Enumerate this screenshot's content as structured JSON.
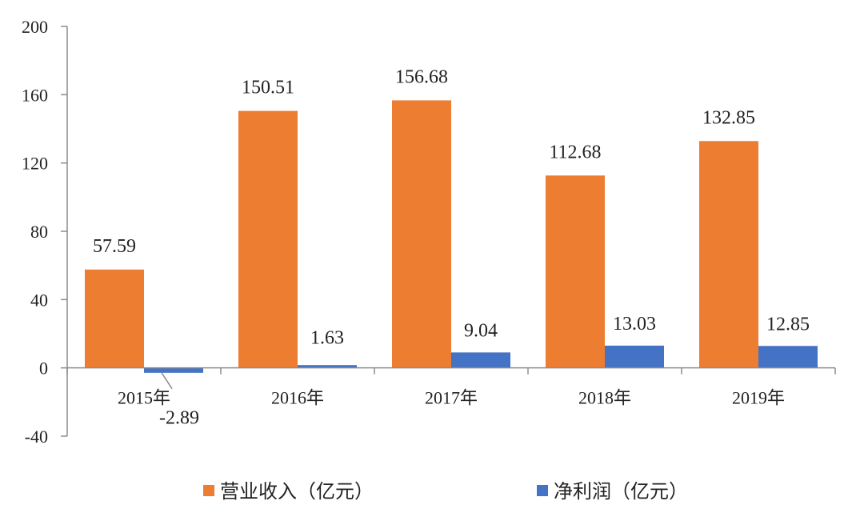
{
  "chart_data": {
    "type": "bar",
    "categories": [
      "2015年",
      "2016年",
      "2017年",
      "2018年",
      "2019年"
    ],
    "series": [
      {
        "name": "营业收入（亿元）",
        "values": [
          57.59,
          150.51,
          156.68,
          112.68,
          132.85
        ],
        "labels": [
          "57.59",
          "150.51",
          "156.68",
          "112.68",
          "132.85"
        ],
        "color": "#ED7D31"
      },
      {
        "name": "净利润（亿元）",
        "values": [
          -2.89,
          1.63,
          9.04,
          13.03,
          12.85
        ],
        "labels": [
          "-2.89",
          "1.63",
          "9.04",
          "13.03",
          "12.85"
        ],
        "color": "#4472C4"
      }
    ],
    "ylim": [
      -40,
      200
    ],
    "yticks": [
      -40,
      0,
      40,
      80,
      120,
      160,
      200
    ],
    "ytick_labels": [
      "-40",
      "0",
      "40",
      "80",
      "120",
      "160",
      "200"
    ],
    "grid": false,
    "legend": "bottom",
    "title": "",
    "xlabel": "",
    "ylabel": ""
  }
}
